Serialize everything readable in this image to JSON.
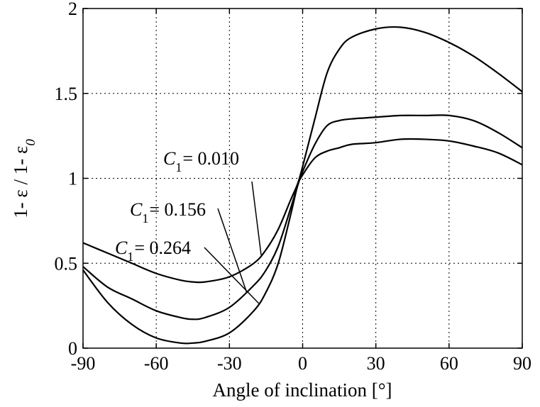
{
  "chart_data": {
    "type": "line",
    "xlabel": "Angle of inclination [°]",
    "ylabel": "1- ε / 1- ε",
    "ylabel_subscript": "0",
    "xlim": [
      -90,
      90
    ],
    "ylim": [
      0,
      2
    ],
    "xticks": [
      -90,
      -60,
      -30,
      0,
      30,
      60,
      90
    ],
    "xtick_labels": [
      "-90",
      "-60",
      "-30",
      "0",
      "30",
      "60",
      "90"
    ],
    "yticks": [
      0,
      0.5,
      1,
      1.5,
      2
    ],
    "ytick_labels": [
      "0",
      "0.5",
      "1",
      "1.5",
      "2"
    ],
    "grid": true,
    "series": [
      {
        "name": "C1 = 0.010",
        "annotation": {
          "base": "C",
          "sub": "1",
          "rest": "= 0.010"
        },
        "x": [
          -90,
          -80,
          -70,
          -60,
          -50,
          -45,
          -40,
          -30,
          -20,
          -15,
          -10,
          -5,
          -2,
          0,
          5,
          10,
          15,
          20,
          30,
          40,
          50,
          60,
          70,
          80,
          90
        ],
        "y": [
          0.62,
          0.56,
          0.5,
          0.44,
          0.4,
          0.39,
          0.39,
          0.42,
          0.5,
          0.58,
          0.7,
          0.87,
          0.97,
          1.07,
          1.35,
          1.62,
          1.76,
          1.83,
          1.88,
          1.89,
          1.86,
          1.8,
          1.72,
          1.62,
          1.51
        ],
        "pointer_x": -17
      },
      {
        "name": "C1 = 0.156",
        "annotation": {
          "base": "C",
          "sub": "1",
          "rest": "= 0.156"
        },
        "x": [
          -90,
          -80,
          -70,
          -60,
          -50,
          -45,
          -40,
          -30,
          -20,
          -15,
          -10,
          -5,
          -2,
          0,
          5,
          10,
          15,
          20,
          30,
          40,
          50,
          60,
          70,
          80,
          90
        ],
        "y": [
          0.48,
          0.36,
          0.29,
          0.22,
          0.18,
          0.17,
          0.18,
          0.24,
          0.37,
          0.46,
          0.6,
          0.82,
          0.96,
          1.04,
          1.2,
          1.31,
          1.34,
          1.35,
          1.36,
          1.37,
          1.37,
          1.37,
          1.34,
          1.27,
          1.18
        ],
        "pointer_x": -23
      },
      {
        "name": "C1 = 0.264",
        "annotation": {
          "base": "C",
          "sub": "1",
          "rest": "= 0.264"
        },
        "x": [
          -90,
          -80,
          -70,
          -60,
          -50,
          -45,
          -40,
          -30,
          -20,
          -15,
          -10,
          -5,
          -2,
          0,
          5,
          10,
          15,
          20,
          30,
          40,
          50,
          60,
          70,
          80,
          90
        ],
        "y": [
          0.46,
          0.27,
          0.14,
          0.06,
          0.03,
          0.03,
          0.04,
          0.09,
          0.22,
          0.33,
          0.5,
          0.78,
          0.96,
          1.02,
          1.12,
          1.16,
          1.18,
          1.2,
          1.21,
          1.23,
          1.23,
          1.22,
          1.19,
          1.15,
          1.08
        ],
        "pointer_x": -18
      }
    ]
  }
}
